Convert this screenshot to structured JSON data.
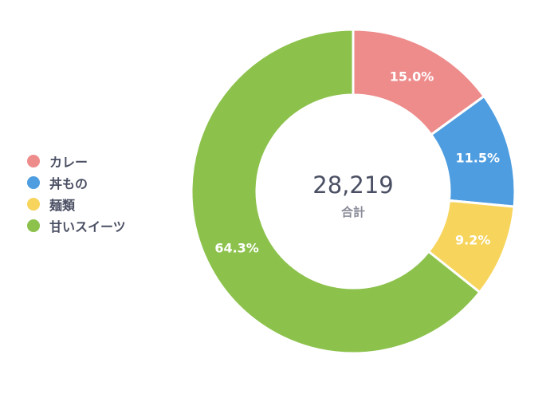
{
  "chart_data": {
    "type": "pie",
    "subtype": "donut",
    "categories": [
      "カレー",
      "丼もの",
      "麺類",
      "甘いスイーツ"
    ],
    "values": [
      15.0,
      11.5,
      9.2,
      64.3
    ],
    "value_labels": [
      "15.0%",
      "11.5%",
      "9.2%",
      "64.3%"
    ],
    "colors": [
      "#EE8C8C",
      "#4E9DE0",
      "#F7D45C",
      "#8CC24C"
    ],
    "center_value": "28,219",
    "center_label": "合計",
    "legend_position": "left"
  }
}
